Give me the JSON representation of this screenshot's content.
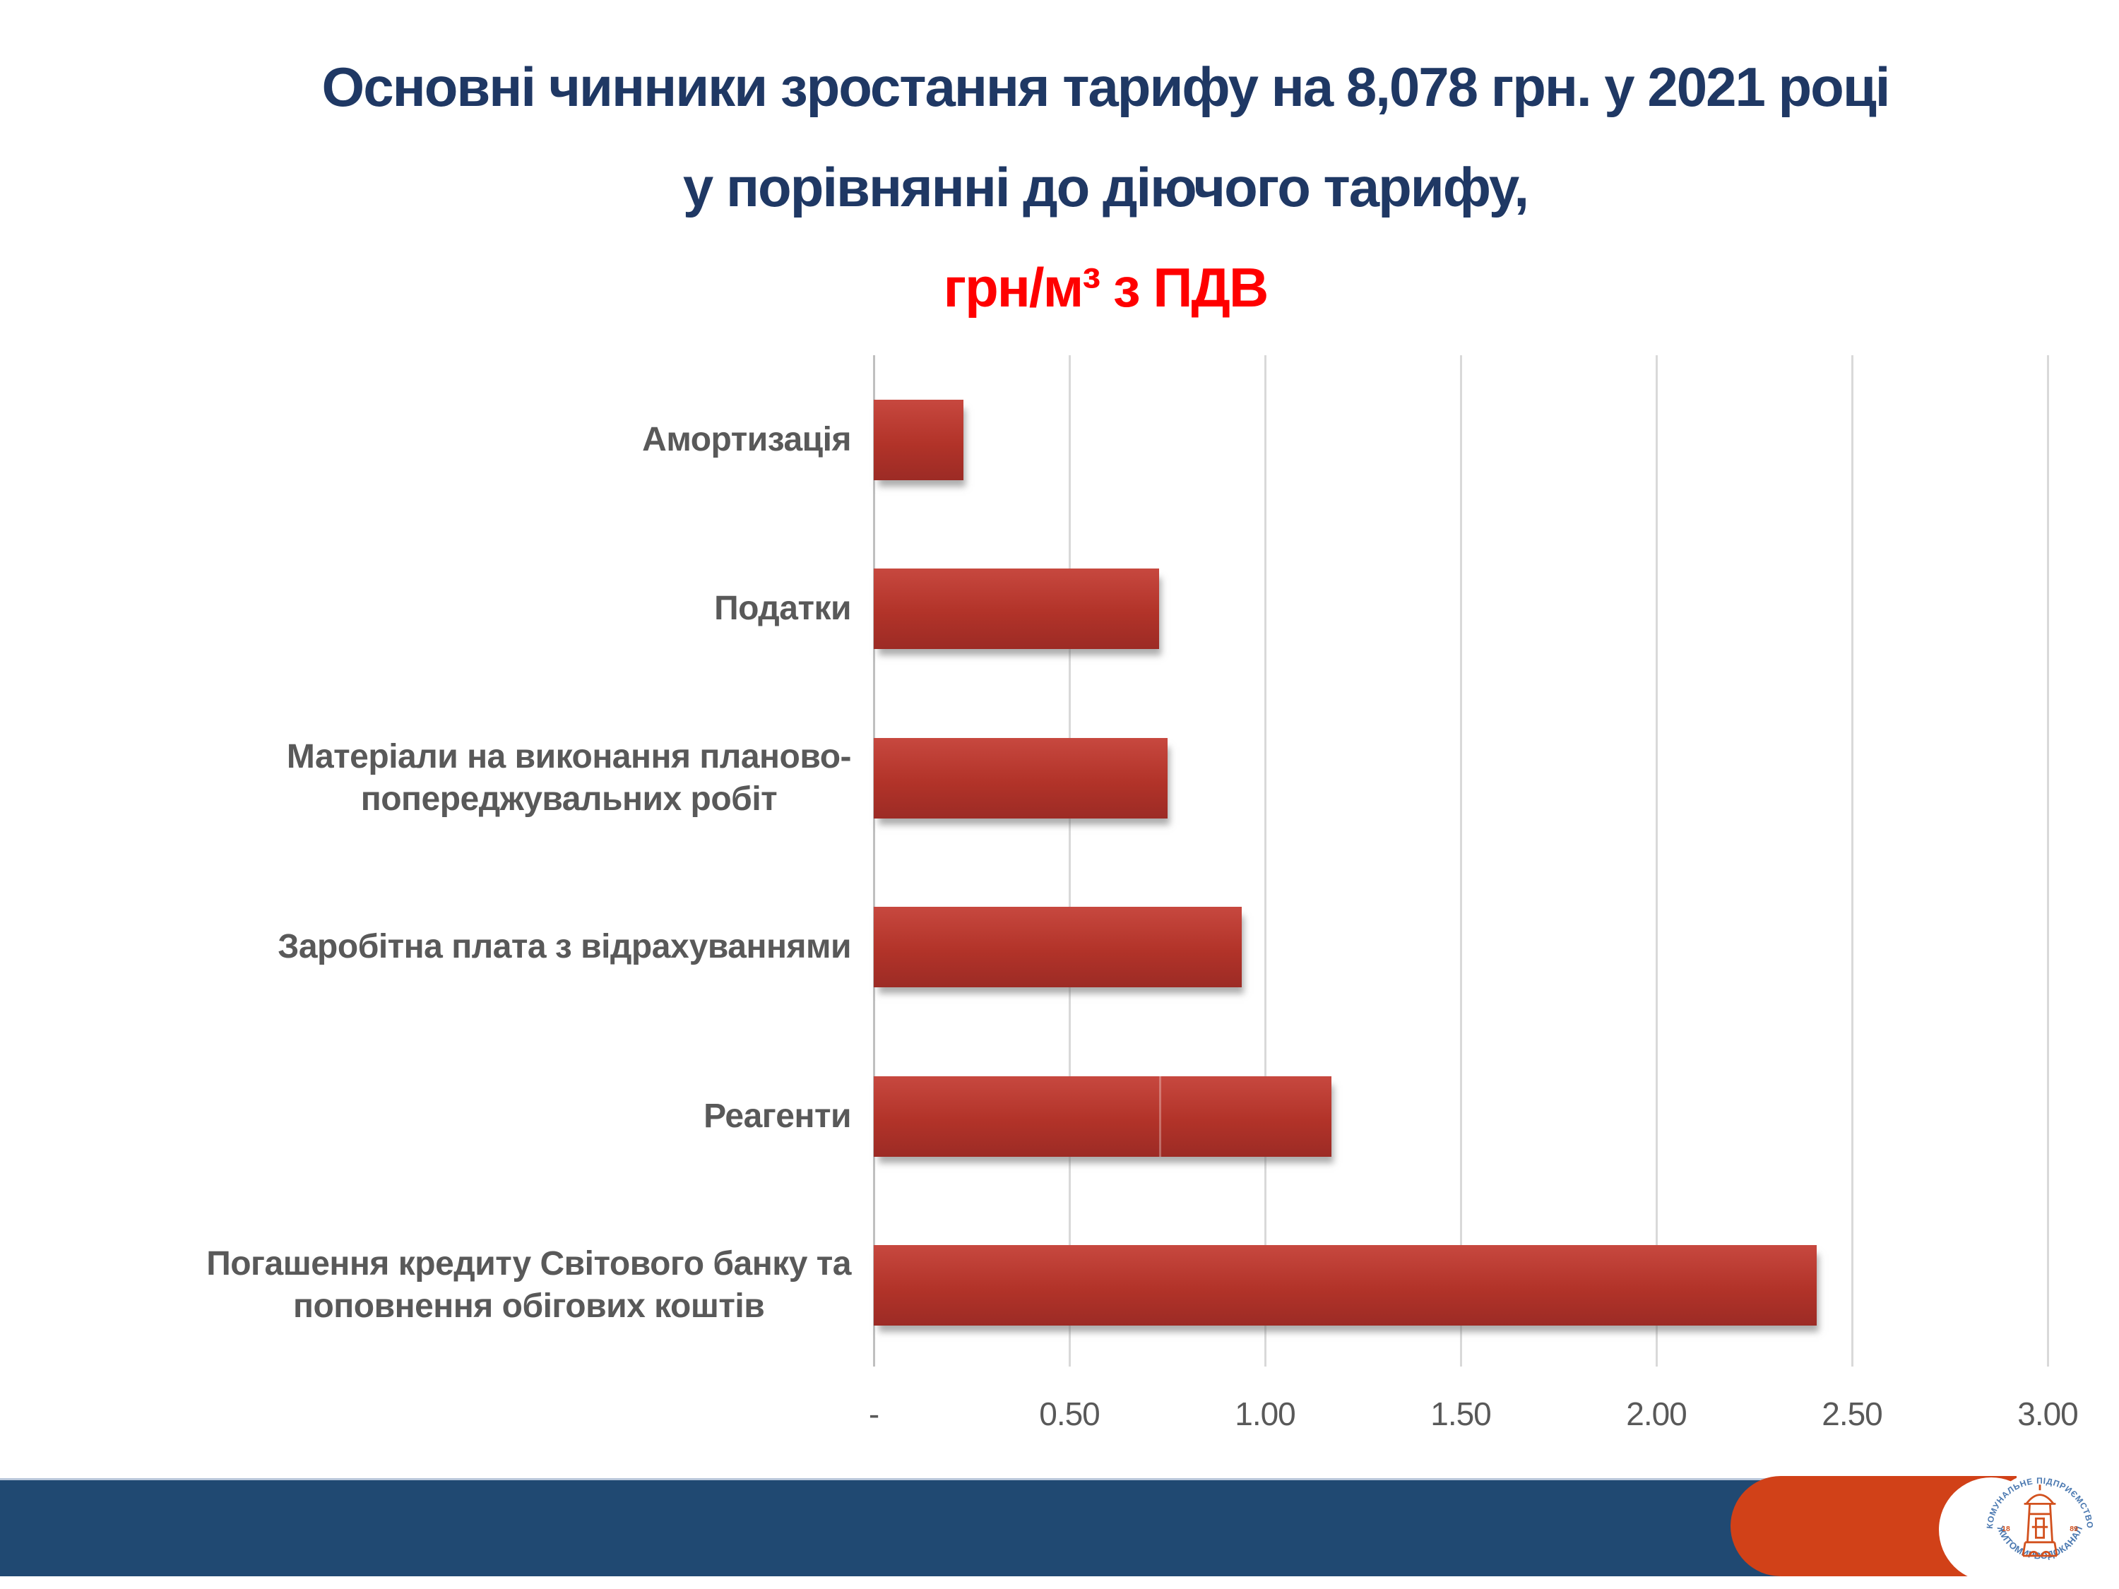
{
  "title": {
    "line1": "Основні чинники зростання тарифу на 8,078 грн. у 2021 році",
    "line2": "у порівнянні до діючого тарифу,",
    "line3": "грн/м³ з ПДВ"
  },
  "chart_data": {
    "type": "bar",
    "orientation": "horizontal",
    "title": "Основні чинники зростання тарифу на 8,078 грн. у 2021 році у порівнянні до діючого тарифу, грн/м³ з ПДВ",
    "categories": [
      "Амортизація",
      "Податки",
      "Матеріали на виконання планово-\nпопереджувальних робіт",
      "Заробітна плата з відрахуваннями",
      "Реагенти",
      "Погашення кредиту Світового банку та\nпоповнення обігових коштів"
    ],
    "values": [
      0.23,
      0.73,
      0.75,
      0.94,
      1.17,
      2.41
    ],
    "xlabel": "",
    "ylabel": "",
    "xlim": [
      0,
      3.0
    ],
    "x_ticks": [
      "-",
      "0.50",
      "1.00",
      "1.50",
      "2.00",
      "2.50",
      "3.00"
    ],
    "x_tick_values": [
      0,
      0.5,
      1.0,
      1.5,
      2.0,
      2.5,
      3.0
    ],
    "grid": true,
    "legend": false,
    "data_labels": false,
    "bar_gradient_seam": {
      "bar_index": 4,
      "at_value": 0.73
    }
  },
  "footer": {
    "logo": {
      "top_text": "КОМУНАЛЬНЕ ПІДПРИЄМСТВО",
      "bottom_text": "ЖИТОМИРВОДОКАНАЛ",
      "year_left": "18",
      "year_right": "89"
    }
  },
  "colors": {
    "title_navy": "#1f3864",
    "title_red": "#ff0000",
    "label_gray": "#595959",
    "grid_gray": "#d9d9d9",
    "axis_gray": "#bfbfbf",
    "bar_top": "#c7483f",
    "bar_bottom": "#9c2b25",
    "band_navy": "#204972",
    "band_orange": "#d14118",
    "logo_blue": "#4a78b0",
    "logo_orange": "#d2511e"
  }
}
